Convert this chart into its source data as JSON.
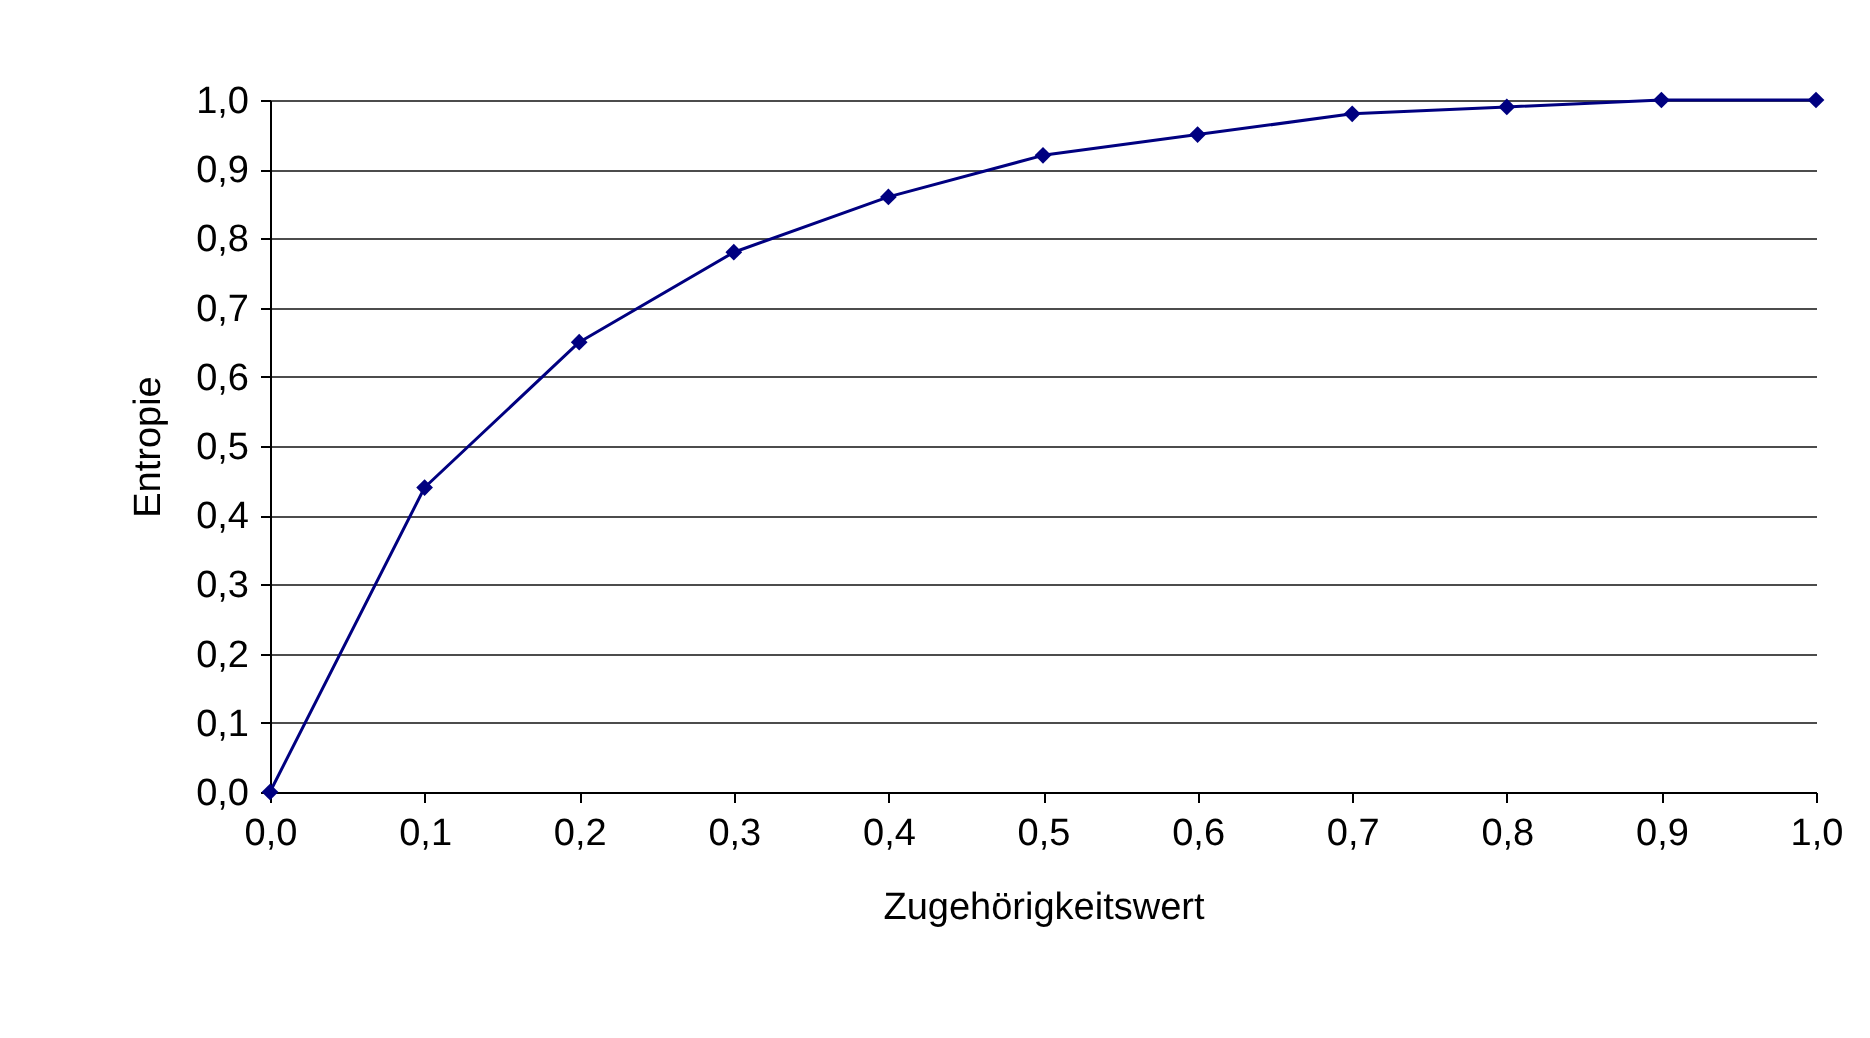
{
  "chart_data": {
    "type": "line",
    "xlabel": "Zugehörigkeitswert",
    "ylabel": "Entropie",
    "categories": [
      "0,0",
      "0,1",
      "0,2",
      "0,3",
      "0,4",
      "0,5",
      "0,6",
      "0,7",
      "0,8",
      "0,9",
      "1,0"
    ],
    "series": [
      {
        "color": "#000080",
        "values": [
          0,
          0.44,
          0.65,
          0.78,
          0.86,
          0.92,
          0.95,
          0.98,
          0.99,
          1.0,
          1.0
        ]
      }
    ],
    "ylim": [
      0,
      1
    ],
    "yticks": [
      {
        "value": 0,
        "label": "0,0"
      },
      {
        "value": 0.1,
        "label": "0,1"
      },
      {
        "value": 0.2,
        "label": "0,2"
      },
      {
        "value": 0.3,
        "label": "0,3"
      },
      {
        "value": 0.4,
        "label": "0,4"
      },
      {
        "value": 0.5,
        "label": "0,5"
      },
      {
        "value": 0.6,
        "label": "0,6"
      },
      {
        "value": 0.7,
        "label": "0,7"
      },
      {
        "value": 0.8,
        "label": "0,8"
      },
      {
        "value": 0.9,
        "label": "0,9"
      },
      {
        "value": 1,
        "label": "1,0"
      }
    ],
    "grid": "y",
    "marker": "diamond",
    "line_style": "solid",
    "legend": false
  }
}
